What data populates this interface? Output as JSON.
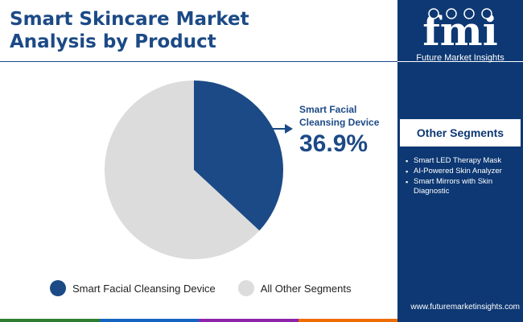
{
  "header": {
    "title_line1": "Smart Skincare Market",
    "title_line2": "Analysis by Product"
  },
  "brand": {
    "logo_text": "fmi",
    "caption": "Future Market Insights",
    "website": "www.futuremarketinsights.com"
  },
  "colors": {
    "primary": "#1c4a86",
    "panel": "#0d3873",
    "other": "#dcdcdc",
    "bar": [
      "#2e7d32",
      "#1565c0",
      "#8e24aa",
      "#ef6c00"
    ]
  },
  "callout": {
    "name": "Smart Facial Cleansing Device",
    "value": "36.9%"
  },
  "other_segments": {
    "heading": "Other Segments",
    "items": [
      "Smart LED Therapy Mask",
      "AI-Powered Skin Analyzer",
      "Smart Mirrors with Skin Diagnostic"
    ]
  },
  "chart_data": {
    "type": "pie",
    "slices": [
      {
        "label": "Smart Facial Cleansing Device",
        "value": 36.9,
        "color": "#1c4a86"
      },
      {
        "label": "All Other Segments",
        "value": 63.1,
        "color": "#dcdcdc"
      }
    ],
    "start_angle_deg": 0,
    "direction": "clockwise",
    "legend_position": "bottom"
  }
}
